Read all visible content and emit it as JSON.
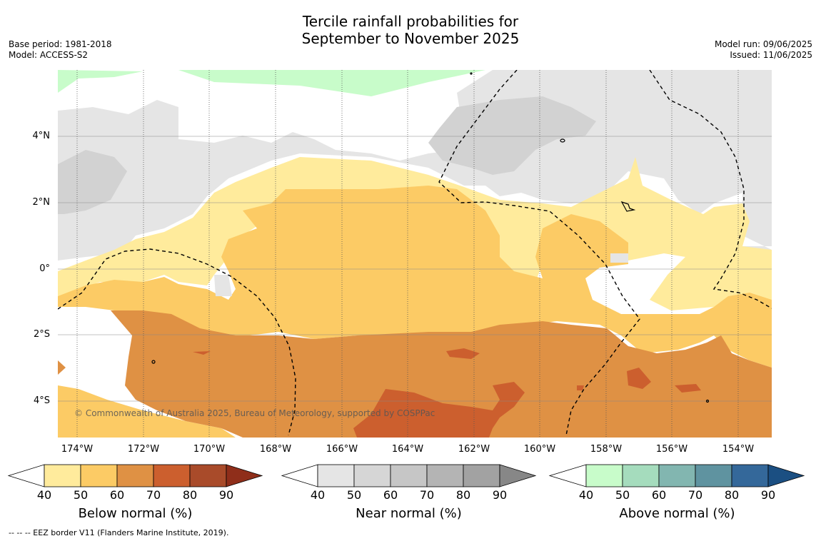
{
  "title": {
    "line1": "Tercile rainfall probabilities for",
    "line2": "September to November 2025"
  },
  "meta_left": {
    "base_period": "Base period: 1981-2018",
    "model": "Model: ACCESS-S2"
  },
  "meta_right": {
    "model_run": "Model run: 09/06/2025",
    "issued": "Issued: 11/06/2025"
  },
  "lat_labels": [
    "4°N",
    "2°N",
    "0°",
    "2°S",
    "4°S"
  ],
  "lon_labels": [
    "174°W",
    "172°W",
    "170°W",
    "168°W",
    "166°W",
    "164°W",
    "162°W",
    "160°W",
    "158°W",
    "156°W",
    "154°W"
  ],
  "copyright": "© Commonwealth of Australia 2025, Bureau of Meteorology, supported by COSPPac",
  "colorbars": [
    {
      "label": "Below normal (%)",
      "ticks": [
        "40",
        "50",
        "60",
        "70",
        "80",
        "90"
      ],
      "colors": [
        "#ffeb9c",
        "#fccb65",
        "#df9144",
        "#cc5f2e",
        "#a94b2a",
        "#8f2e1a"
      ]
    },
    {
      "label": "Near normal (%)",
      "ticks": [
        "40",
        "50",
        "60",
        "70",
        "80",
        "90"
      ],
      "colors": [
        "#e5e5e5",
        "#d6d6d6",
        "#c6c6c6",
        "#b4b4b4",
        "#a2a2a2",
        "#878787"
      ]
    },
    {
      "label": "Above normal (%)",
      "ticks": [
        "40",
        "50",
        "60",
        "70",
        "80",
        "90"
      ],
      "colors": [
        "#c8fcca",
        "#a5dcbd",
        "#82b6b0",
        "#5f93a0",
        "#34689a",
        "#1b4f82"
      ]
    }
  ],
  "footnote": "--  --  -- EEZ border V11 (Flanders Marine Institute, 2019).",
  "map_colors": {
    "near50": "#e5e5e5",
    "near60": "#d2d2d2",
    "below40": "#ffeb9c",
    "below50": "#fccb65",
    "below60": "#df9144",
    "below70": "#cc5f2e",
    "above40": "#c8fcca"
  }
}
